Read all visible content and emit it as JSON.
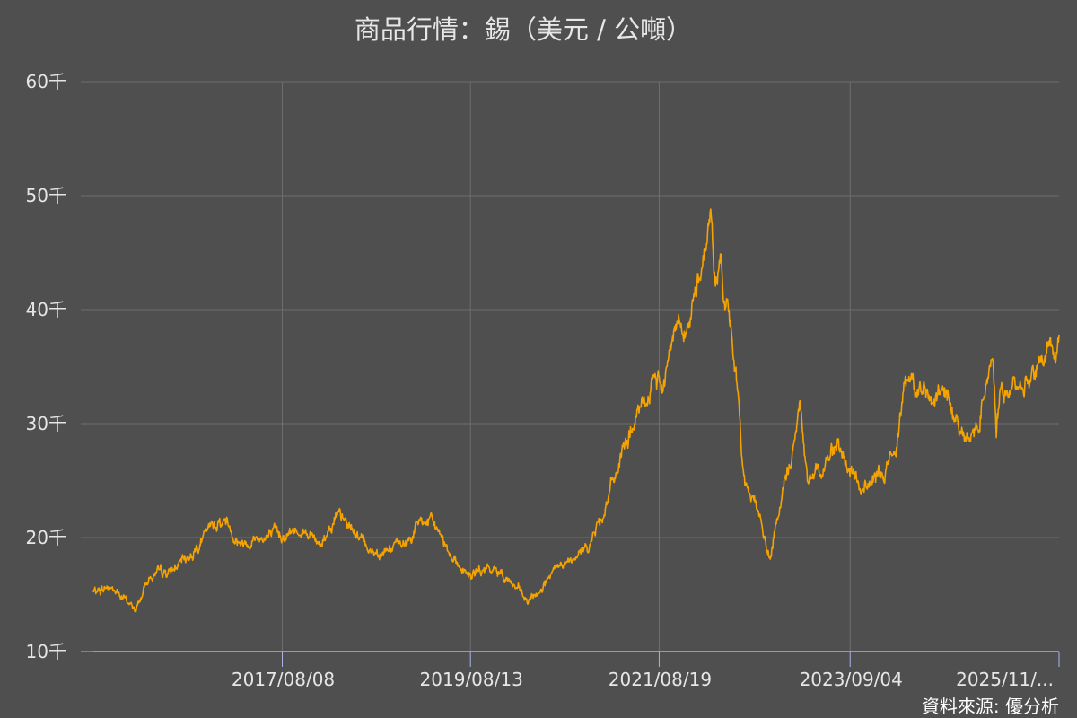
{
  "chart_data": {
    "type": "line",
    "title": "商品行情：錫（美元 / 公噸）",
    "source": "資料來源: 優分析",
    "y_tick_labels": [
      "10千",
      "20千",
      "30千",
      "40千",
      "50千",
      "60千"
    ],
    "y_ticks": [
      10000,
      20000,
      30000,
      40000,
      50000,
      60000
    ],
    "ylim": [
      10000,
      60000
    ],
    "x_tick_labels": [
      "2017/08/08",
      "2019/08/13",
      "2021/08/19",
      "2023/09/04",
      "2025/11/..."
    ],
    "x_ticks": [
      "2017-08-08",
      "2019-08-13",
      "2021-08-19",
      "2023-09-04",
      "2025-11-28"
    ],
    "xlim": [
      "2015-08-01",
      "2025-11-28"
    ],
    "grid": true,
    "colors": {
      "background": "#4f4f4f",
      "series": "#f4a300",
      "grid": "#6e6e6e",
      "x_axis": "#aab4e8"
    },
    "series": [
      {
        "x": [
          "2015-08-01",
          "2015-10-01",
          "2015-12-01",
          "2016-01-15",
          "2016-03-01",
          "2016-06-01",
          "2016-08-15",
          "2016-11-15",
          "2017-01-01",
          "2017-02-01",
          "2017-03-01",
          "2017-05-01",
          "2017-08-01",
          "2017-11-01",
          "2018-01-01",
          "2018-03-01",
          "2018-04-01",
          "2018-06-01",
          "2018-08-01",
          "2018-10-01",
          "2018-12-01",
          "2019-02-01",
          "2019-04-01",
          "2019-05-01",
          "2019-07-01",
          "2019-08-15",
          "2019-10-01",
          "2019-12-01",
          "2020-01-01",
          "2020-03-25",
          "2020-06-01",
          "2020-08-01",
          "2020-10-01",
          "2020-12-01",
          "2021-01-01",
          "2021-03-01",
          "2021-05-01",
          "2021-07-01",
          "2021-08-15",
          "2021-09-01",
          "2021-10-01",
          "2021-11-01",
          "2021-12-15",
          "2022-02-01",
          "2022-03-08",
          "2022-03-25",
          "2022-04-15",
          "2022-05-15",
          "2022-06-15",
          "2022-07-01",
          "2022-07-20",
          "2022-09-01",
          "2022-10-25",
          "2022-12-01",
          "2023-01-01",
          "2023-01-25",
          "2023-02-20",
          "2023-03-25",
          "2023-04-15",
          "2023-06-15",
          "2023-07-15",
          "2023-08-15",
          "2023-09-15",
          "2023-10-15",
          "2023-11-15",
          "2024-01-15",
          "2024-03-01",
          "2024-04-01",
          "2024-05-20",
          "2024-06-20",
          "2024-07-15",
          "2024-08-15",
          "2024-09-15",
          "2024-10-20",
          "2024-11-15",
          "2024-12-15",
          "2025-01-15",
          "2025-02-15",
          "2025-03-15",
          "2025-03-28",
          "2025-04-10",
          "2025-05-01",
          "2025-06-01",
          "2025-07-01",
          "2025-08-01",
          "2025-09-01",
          "2025-10-01",
          "2025-10-20",
          "2025-11-10",
          "2025-11-28"
        ],
        "y": [
          15200,
          15700,
          14600,
          13600,
          16500,
          17000,
          18500,
          21200,
          21600,
          20200,
          19500,
          20000,
          20200,
          20800,
          19400,
          21800,
          21500,
          20200,
          18700,
          19100,
          19300,
          21500,
          21000,
          19700,
          17500,
          16600,
          17100,
          17000,
          16600,
          14200,
          16000,
          17500,
          18000,
          20000,
          21500,
          25500,
          29500,
          32000,
          34300,
          32600,
          37800,
          39000,
          38500,
          44200,
          48500,
          42500,
          44000,
          39000,
          35000,
          29500,
          24800,
          23200,
          17900,
          22500,
          25500,
          27800,
          31500,
          24500,
          25500,
          26800,
          29000,
          26000,
          25600,
          24100,
          24800,
          25500,
          28000,
          34500,
          32800,
          33500,
          31000,
          32800,
          32500,
          30500,
          29500,
          28400,
          30000,
          33500,
          36500,
          30000,
          33000,
          32500,
          33200,
          33500,
          34000,
          35000,
          35500,
          37200,
          36000,
          37800
        ]
      }
    ]
  }
}
